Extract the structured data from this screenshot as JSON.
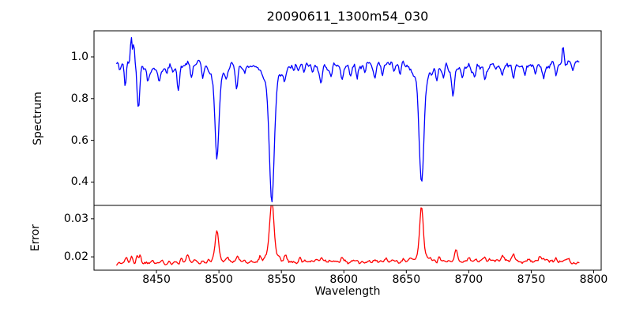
{
  "figure": {
    "title": "20090611_1300m54_030",
    "background_color": "#ffffff",
    "axes_color": "#000000",
    "xaxis": {
      "label": "Wavelength",
      "xlim": [
        8400,
        8806
      ],
      "tick_labels": [
        "8450",
        "8500",
        "8550",
        "8600",
        "8650",
        "8700",
        "8750",
        "8800"
      ]
    }
  },
  "chart_data": [
    {
      "id": "spectrum",
      "type": "line",
      "line_color": "#0000ff",
      "ylabel": "Spectrum",
      "ylim": [
        0.288,
        1.125
      ],
      "ytick_labels": [
        "0.4",
        "0.6",
        "0.8",
        "1.0"
      ],
      "x_start": 8418,
      "x_end": 8788.5,
      "x_step": 0.75,
      "base_anchors": [
        [
          8418,
          0.965
        ],
        [
          8430,
          0.975
        ],
        [
          8445,
          0.945
        ],
        [
          8460,
          0.95
        ],
        [
          8475,
          0.96
        ],
        [
          8490,
          0.965
        ],
        [
          8510,
          0.96
        ],
        [
          8530,
          0.965
        ],
        [
          8555,
          0.96
        ],
        [
          8580,
          0.955
        ],
        [
          8605,
          0.96
        ],
        [
          8630,
          0.96
        ],
        [
          8655,
          0.96
        ],
        [
          8680,
          0.955
        ],
        [
          8705,
          0.95
        ],
        [
          8730,
          0.955
        ],
        [
          8755,
          0.958
        ],
        [
          8775,
          0.965
        ],
        [
          8788.5,
          0.98
        ]
      ],
      "noise": {
        "amplitude": 0.03,
        "smooth": 1,
        "seed": 42
      },
      "features": [
        [
          8420.5,
          -0.035,
          0.6
        ],
        [
          8425.0,
          -0.115,
          0.8
        ],
        [
          8429.8,
          0.115,
          0.7
        ],
        [
          8431.8,
          0.1,
          0.6
        ],
        [
          8435.5,
          -0.195,
          1.0
        ],
        [
          8443.0,
          -0.07,
          0.9
        ],
        [
          8452.0,
          -0.075,
          0.9
        ],
        [
          8458.0,
          -0.04,
          0.8
        ],
        [
          8467.5,
          -0.12,
          1.0
        ],
        [
          8478.0,
          -0.06,
          0.8
        ],
        [
          8487.0,
          -0.05,
          0.7
        ],
        [
          8498.4,
          -0.36,
          1.5
        ],
        [
          8498.4,
          -0.08,
          5.0
        ],
        [
          8506.0,
          -0.04,
          0.8
        ],
        [
          8514.2,
          -0.1,
          1.0
        ],
        [
          8521.0,
          -0.05,
          0.8
        ],
        [
          8542.3,
          -0.55,
          1.9
        ],
        [
          8542.3,
          -0.09,
          6.5
        ],
        [
          8552.5,
          -0.07,
          0.9
        ],
        [
          8560.0,
          -0.04,
          0.8
        ],
        [
          8568.0,
          -0.05,
          0.9
        ],
        [
          8575.0,
          -0.04,
          0.8
        ],
        [
          8582.0,
          -0.09,
          1.0
        ],
        [
          8590.0,
          -0.05,
          0.8
        ],
        [
          8598.5,
          -0.06,
          0.9
        ],
        [
          8605.0,
          -0.04,
          0.8
        ],
        [
          8610.5,
          -0.06,
          0.8
        ],
        [
          8617.0,
          -0.04,
          0.7
        ],
        [
          8625.0,
          -0.04,
          0.8
        ],
        [
          8631.0,
          -0.04,
          0.7
        ],
        [
          8640.0,
          -0.04,
          0.8
        ],
        [
          8645.0,
          -0.05,
          0.8
        ],
        [
          8662.2,
          -0.48,
          1.8
        ],
        [
          8662.2,
          -0.085,
          6.0
        ],
        [
          8674.5,
          -0.06,
          0.9
        ],
        [
          8680.0,
          -0.04,
          0.7
        ],
        [
          8687.5,
          -0.15,
          1.2
        ],
        [
          8695.0,
          -0.05,
          0.8
        ],
        [
          8705.0,
          -0.04,
          0.8
        ],
        [
          8713.0,
          -0.06,
          0.9
        ],
        [
          8727.0,
          -0.04,
          0.8
        ],
        [
          8736.0,
          -0.05,
          0.8
        ],
        [
          8745.0,
          -0.04,
          0.7
        ],
        [
          8753.0,
          -0.04,
          0.8
        ],
        [
          8760.0,
          -0.06,
          0.9
        ],
        [
          8770.0,
          -0.05,
          0.8
        ],
        [
          8775.5,
          0.1,
          0.7
        ],
        [
          8783.0,
          -0.04,
          0.8
        ]
      ],
      "main_lines": [
        8498.4,
        8542.3,
        8662.2
      ]
    },
    {
      "id": "error",
      "type": "line",
      "line_color": "#ff0000",
      "ylabel": "Error",
      "ylim": [
        0.0165,
        0.0335
      ],
      "ytick_labels": [
        "0.02",
        "0.03"
      ],
      "x_start": 8418,
      "x_end": 8788.5,
      "x_step": 0.75,
      "base_anchors": [
        [
          8418,
          0.0183
        ],
        [
          8440,
          0.0185
        ],
        [
          8480,
          0.0186
        ],
        [
          8530,
          0.0188
        ],
        [
          8560,
          0.0188
        ],
        [
          8600,
          0.0187
        ],
        [
          8650,
          0.0189
        ],
        [
          8700,
          0.019
        ],
        [
          8740,
          0.019
        ],
        [
          8770,
          0.0189
        ],
        [
          8788.5,
          0.0184
        ]
      ],
      "noise": {
        "amplitude": 0.0009,
        "smooth": 1,
        "seed": 1337
      },
      "features": [
        [
          8426.0,
          0.0016,
          1.0
        ],
        [
          8430.0,
          0.0013,
          0.9
        ],
        [
          8434.5,
          0.0022,
          0.9
        ],
        [
          8437.0,
          0.0018,
          0.8
        ],
        [
          8447.0,
          0.0012,
          0.9
        ],
        [
          8460.0,
          0.0008,
          0.8
        ],
        [
          8470.0,
          0.0012,
          0.9
        ],
        [
          8475.0,
          0.0018,
          0.9
        ],
        [
          8498.4,
          0.007,
          1.3
        ],
        [
          8498.4,
          0.0012,
          4.0
        ],
        [
          8507.0,
          0.0012,
          0.8
        ],
        [
          8514.5,
          0.0016,
          0.9
        ],
        [
          8533.0,
          0.001,
          0.8
        ],
        [
          8542.3,
          0.0136,
          1.6
        ],
        [
          8542.3,
          0.0022,
          5.0
        ],
        [
          8553.0,
          0.0016,
          0.9
        ],
        [
          8565.0,
          0.0008,
          0.8
        ],
        [
          8582.0,
          0.001,
          0.9
        ],
        [
          8598.0,
          0.0008,
          0.8
        ],
        [
          8611.0,
          0.0008,
          0.8
        ],
        [
          8634.0,
          0.0008,
          0.8
        ],
        [
          8648.0,
          0.001,
          0.8
        ],
        [
          8662.2,
          0.0128,
          1.4
        ],
        [
          8662.2,
          0.0018,
          4.0
        ],
        [
          8676.0,
          0.001,
          0.8
        ],
        [
          8689.5,
          0.003,
          1.1
        ],
        [
          8700.0,
          0.0008,
          0.8
        ],
        [
          8713.0,
          0.001,
          0.8
        ],
        [
          8727.0,
          0.001,
          0.8
        ],
        [
          8736.0,
          0.0012,
          0.8
        ],
        [
          8748.0,
          0.001,
          0.8
        ],
        [
          8757.0,
          0.0014,
          0.9
        ],
        [
          8770.0,
          0.0012,
          0.8
        ],
        [
          8780.0,
          0.001,
          0.8
        ]
      ],
      "main_peaks": [
        8498.4,
        8542.3,
        8662.2
      ]
    }
  ]
}
